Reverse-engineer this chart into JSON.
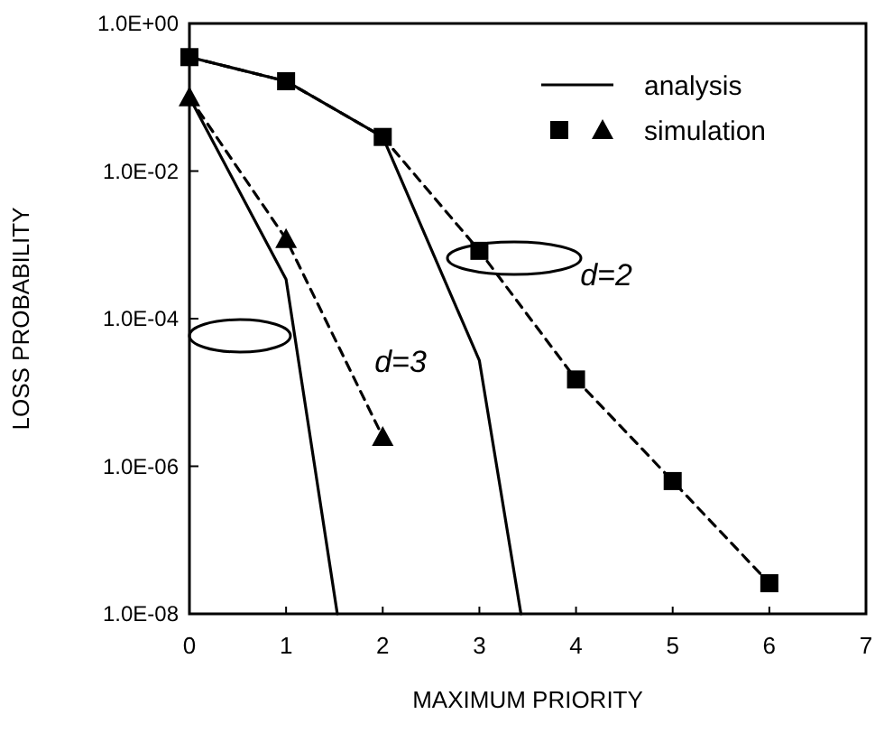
{
  "chart_data": {
    "type": "line",
    "xlabel": "MAXIMUM PRIORITY",
    "ylabel": "LOSS PROBABILITY",
    "log": "y",
    "xlim": [
      0,
      7
    ],
    "xticks": [
      0,
      1,
      2,
      3,
      4,
      5,
      6,
      7
    ],
    "ylim": [
      1e-08,
      1
    ],
    "yticks": [
      {
        "value": 1,
        "label": "1.0E+00"
      },
      {
        "value": 0.01,
        "label": "1.0E-02"
      },
      {
        "value": 0.0001,
        "label": "1.0E-04"
      },
      {
        "value": 1e-06,
        "label": "1.0E-06"
      },
      {
        "value": 1e-08,
        "label": "1.0E-08"
      }
    ],
    "grid": false,
    "legend": "top right",
    "series": [
      {
        "name": "analysis",
        "color": "#000000",
        "line_style": "solid",
        "x": [
          0,
          1,
          2,
          3,
          3.43
        ],
        "values": [
          0.35,
          0.165,
          0.029,
          2.7e-05,
          1e-08
        ]
      },
      {
        "color": "#000000",
        "line_style": "solid",
        "x": [
          0,
          1,
          1.53
        ],
        "values": [
          0.1,
          0.00034,
          1e-08
        ]
      },
      {
        "color": "#000000",
        "marker": "square",
        "line_style": "dashed",
        "x": [
          0,
          1,
          2,
          3,
          4,
          5,
          6
        ],
        "values": [
          0.35,
          0.165,
          0.029,
          0.00083,
          1.5e-05,
          6.3e-07,
          2.6e-08
        ]
      },
      {
        "name": "simulation",
        "color": "#000000",
        "marker": "triangle",
        "line_style": "dashed",
        "x": [
          0,
          1,
          2
        ],
        "values": [
          0.1,
          0.0012,
          2.5e-06
        ]
      }
    ],
    "annotations": [
      "d=2",
      "d=3"
    ]
  }
}
